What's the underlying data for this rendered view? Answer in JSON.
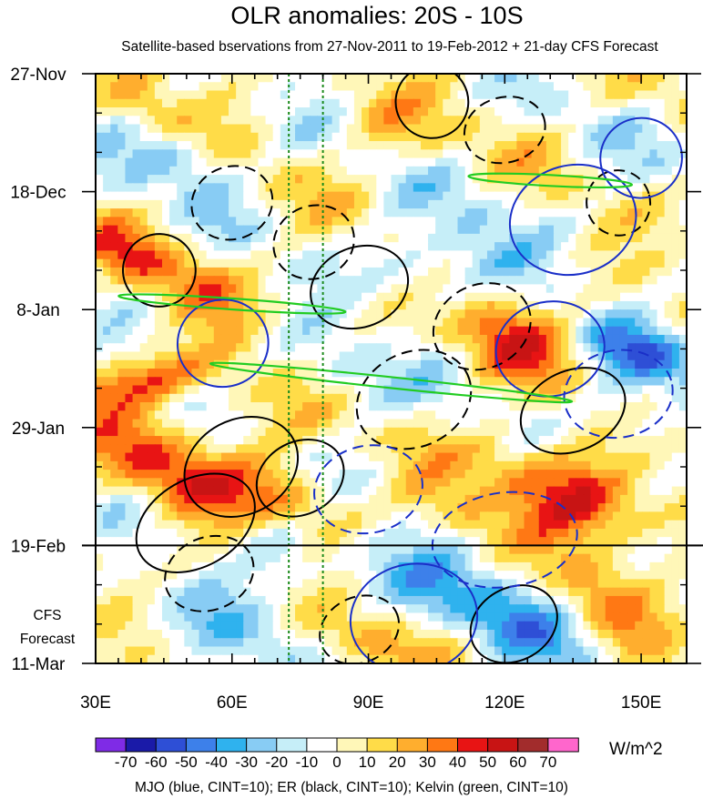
{
  "chart_data": {
    "type": "heatmap",
    "title": "OLR anomalies: 20S - 10S",
    "subtitle": "Satellite-based bservations from 27-Nov-2011 to 19-Feb-2012 + 21-day CFS Forecast",
    "x_ticks": [
      {
        "value": 30,
        "label": "30E"
      },
      {
        "value": 60,
        "label": "60E"
      },
      {
        "value": 90,
        "label": "90E"
      },
      {
        "value": 120,
        "label": "120E"
      },
      {
        "value": 150,
        "label": "150E"
      }
    ],
    "xlim": [
      30,
      160
    ],
    "y_ticks": [
      {
        "value": 0,
        "label": "27-Nov"
      },
      {
        "value": 21,
        "label": "18-Dec"
      },
      {
        "value": 42,
        "label": "8-Jan"
      },
      {
        "value": 63,
        "label": "29-Jan"
      },
      {
        "value": 84,
        "label": "19-Feb"
      },
      {
        "value": 105,
        "label": "11-Mar"
      }
    ],
    "ylim": [
      0,
      105
    ],
    "forecast_label_1": "CFS",
    "forecast_label_2": "Forecast",
    "forecast_start": 84,
    "reference_lines_x": [
      72.5,
      80
    ],
    "colorbar": {
      "labels": [
        "-70",
        "-60",
        "-50",
        "-40",
        "-30",
        "-20",
        "-10",
        "0",
        "10",
        "20",
        "30",
        "40",
        "50",
        "60",
        "70"
      ],
      "colors": [
        "#7f2be6",
        "#1a1aa8",
        "#2e4fd6",
        "#3d80ea",
        "#2fb2ee",
        "#88ccf4",
        "#c6eef8",
        "#ffffff",
        "#fff7b8",
        "#ffdc48",
        "#ffae2e",
        "#ff7814",
        "#e81414",
        "#c81414",
        "#a22c2c",
        "#ff66cc"
      ],
      "units": "W/m^2"
    },
    "footer": "MJO (blue, CINT=10); ER (black, CINT=10); Kelvin (green, CINT=10)"
  }
}
